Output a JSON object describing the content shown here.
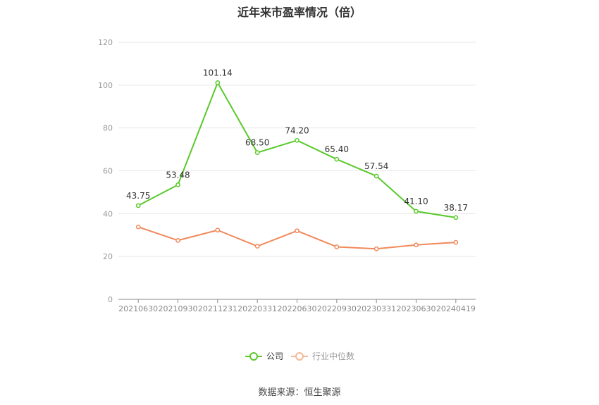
{
  "chart_data": {
    "type": "line",
    "title": "近年来市盈率情况（倍）",
    "categories": [
      "20210630",
      "20210930",
      "20211231",
      "20220331",
      "20220630",
      "20220930",
      "20230331",
      "20230630",
      "20240419"
    ],
    "ylim": [
      0,
      120
    ],
    "yticks": [
      0,
      20,
      40,
      60,
      80,
      100,
      120
    ],
    "grid": true,
    "legend_position": "bottom-center",
    "series": [
      {
        "name": "公司",
        "color": "#5ac92b",
        "values": [
          43.75,
          53.48,
          101.14,
          68.5,
          74.2,
          65.4,
          57.54,
          41.1,
          38.17
        ],
        "labels": [
          "43.75",
          "53.48",
          "101.14",
          "68.50",
          "74.20",
          "65.40",
          "57.54",
          "41.10",
          "38.17"
        ]
      },
      {
        "name": "行业中位数",
        "color": "#f0895a",
        "values": [
          33.8,
          27.5,
          32.3,
          24.8,
          32.0,
          24.5,
          23.6,
          25.4,
          26.6
        ]
      }
    ]
  },
  "source": "数据来源：恒生聚源"
}
